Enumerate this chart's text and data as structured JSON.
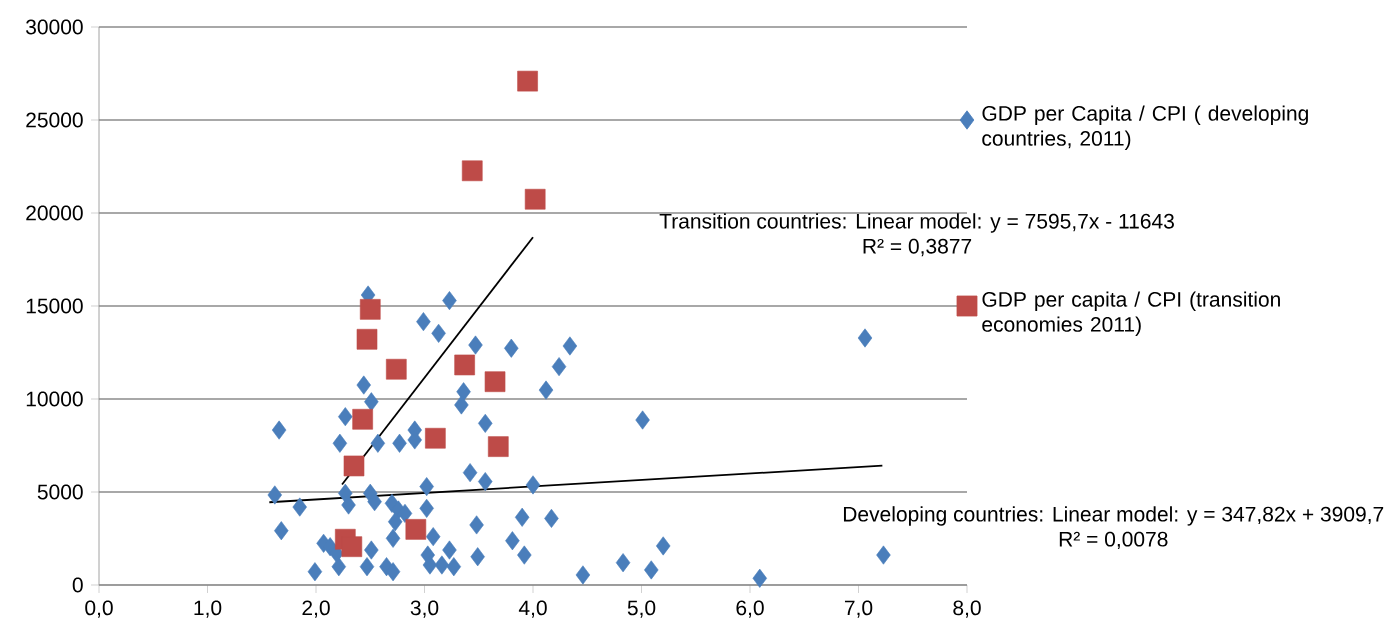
{
  "chart_data": {
    "type": "scatter",
    "xlim": [
      0,
      8
    ],
    "ylim": [
      0,
      30000
    ],
    "xticks": [
      {
        "value": 0,
        "label": "0,0"
      },
      {
        "value": 1,
        "label": "1,0"
      },
      {
        "value": 2,
        "label": "2,0"
      },
      {
        "value": 3,
        "label": "3,0"
      },
      {
        "value": 4,
        "label": "4,0"
      },
      {
        "value": 5,
        "label": "5,0"
      },
      {
        "value": 6,
        "label": "6,0"
      },
      {
        "value": 7,
        "label": "7,0"
      },
      {
        "value": 8,
        "label": "8,0"
      }
    ],
    "yticks": [
      0,
      5000,
      10000,
      15000,
      20000,
      25000,
      30000
    ],
    "grid": "y",
    "legend": "right",
    "series": [
      {
        "name": "GDP per Capita / CPI ( developing countries, 2011)",
        "color": "#4a7ebb",
        "marker": "diamond",
        "x": [
          1.66,
          1.62,
          1.68,
          1.85,
          1.99,
          2.07,
          2.13,
          2.21,
          2.22,
          2.27,
          2.27,
          2.3,
          2.19,
          2.44,
          2.48,
          2.51,
          2.5,
          2.54,
          2.51,
          2.47,
          2.57,
          2.71,
          2.65,
          2.71,
          2.7,
          2.76,
          2.73,
          2.77,
          2.91,
          2.91,
          2.82,
          2.99,
          3.13,
          3.23,
          3.02,
          3.02,
          3.08,
          3.03,
          3.05,
          3.16,
          3.23,
          3.27,
          3.36,
          3.34,
          3.47,
          3.56,
          3.42,
          3.56,
          3.48,
          3.49,
          3.8,
          3.81,
          3.9,
          3.92,
          4.0,
          4.12,
          4.17,
          4.24,
          4.34,
          4.46,
          5.01,
          4.83,
          5.09,
          5.2,
          6.09,
          7.23,
          7.06
        ],
        "values": [
          8330,
          4840,
          2920,
          4190,
          715,
          2240,
          2060,
          985,
          7620,
          9050,
          4930,
          4300,
          1700,
          10750,
          15590,
          9850,
          4930,
          4480,
          1880,
          985,
          7620,
          2510,
          985,
          715,
          4390,
          4030,
          3400,
          7620,
          8330,
          7800,
          3850,
          14160,
          13530,
          15290,
          5290,
          4120,
          2600,
          1610,
          1075,
          1075,
          1880,
          985,
          10390,
          9680,
          12900,
          8690,
          6040,
          5560,
          3230,
          1520,
          12730,
          2380,
          3640,
          1610,
          5380,
          10480,
          3580,
          11740,
          12850,
          540,
          8870,
          1200,
          810,
          2100,
          360,
          1610,
          13280
        ]
      },
      {
        "name": "GDP per capita / CPI (transition economies 2011)",
        "color": "#be4b48",
        "marker": "square",
        "x": [
          2.5,
          2.47,
          2.74,
          3.37,
          3.65,
          2.43,
          3.1,
          3.68,
          2.35,
          2.92,
          2.27,
          2.33,
          3.95,
          3.44,
          4.02
        ],
        "values": [
          14820,
          13210,
          11600,
          11830,
          10930,
          8910,
          7890,
          7440,
          6400,
          2990,
          2460,
          2060,
          27090,
          22270,
          20740
        ]
      },
      {
        "type": "line",
        "color": "#000000",
        "marker": "none",
        "x": [
          2.24,
          4.0
        ],
        "values": [
          5400,
          18700
        ]
      },
      {
        "type": "line",
        "color": "#000000",
        "marker": "none",
        "x": [
          1.57,
          7.22
        ],
        "values": [
          4450,
          6420
        ]
      }
    ],
    "annotations": [
      "Transition countries: Linear model: y = 7595,7x - 11643",
      "R² = 0,3877",
      "Developing countries: Linear model: y = 347,82x + 3909,7",
      "R² = 0,0078"
    ]
  }
}
